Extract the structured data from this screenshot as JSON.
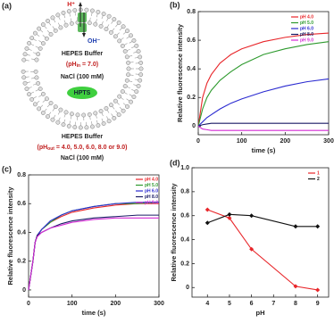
{
  "diagram": {
    "panel_label": "(a)",
    "proton": "H⁺",
    "hydroxide": "OH⁻",
    "inner_buffer": "HEPES Buffer",
    "inner_ph": {
      "prefix": "(pH",
      "sub": "in",
      "suffix": " = 7.0)"
    },
    "inner_salt": "NaCl (100 mM)",
    "dye": "HPTS",
    "outer_buffer": "HEPES Buffer",
    "outer_ph": {
      "prefix": "(pH",
      "sub": "out",
      "suffix": " = 4.0, 5.0, 6.0, 8.0 or 9.0)"
    },
    "outer_salt": "NaCl (100 mM)"
  },
  "chart_data": [
    {
      "type": "line",
      "panel_label": "(b)",
      "xlabel": "time (s)",
      "ylabel": "Relative fluorescence intensity",
      "x": [
        0,
        10,
        20,
        30,
        50,
        75,
        100,
        150,
        200,
        250,
        300
      ],
      "xlim": [
        0,
        300
      ],
      "xticks": [
        0,
        100,
        200,
        300
      ],
      "ylim": [
        -0.06,
        0.8
      ],
      "yticks": [
        0,
        0.2,
        0.4,
        0.6,
        0.8
      ],
      "legend": "upper right",
      "series": [
        {
          "name": "pH 4.0",
          "color": "#e8262a",
          "values": [
            0,
            0.2,
            0.3,
            0.36,
            0.44,
            0.5,
            0.54,
            0.59,
            0.62,
            0.64,
            0.65
          ]
        },
        {
          "name": "pH 5.0",
          "color": "#2e9a2e",
          "values": [
            0,
            0.12,
            0.2,
            0.25,
            0.32,
            0.38,
            0.43,
            0.5,
            0.54,
            0.57,
            0.59
          ]
        },
        {
          "name": "pH 6.0",
          "color": "#2a2ad0",
          "values": [
            0,
            0.03,
            0.06,
            0.08,
            0.12,
            0.16,
            0.19,
            0.24,
            0.28,
            0.31,
            0.33
          ]
        },
        {
          "name": "pH 8.0",
          "color": "#1a1a66",
          "values": [
            0,
            0.01,
            0.015,
            0.02,
            0.02,
            0.02,
            0.02,
            0.02,
            0.02,
            0.02,
            0.02
          ]
        },
        {
          "name": "pH 9.0",
          "color": "#d42ad4",
          "values": [
            0,
            -0.02,
            -0.025,
            -0.03,
            -0.03,
            -0.03,
            -0.03,
            -0.03,
            -0.03,
            -0.03,
            -0.03
          ]
        }
      ]
    },
    {
      "type": "line",
      "panel_label": "(c)",
      "xlabel": "time (s)",
      "ylabel": "Relative fluorescence intensity",
      "x": [
        0,
        10,
        15,
        20,
        30,
        50,
        75,
        100,
        150,
        200,
        250,
        300
      ],
      "xlim": [
        0,
        300
      ],
      "xticks": [
        0,
        100,
        200,
        300
      ],
      "ylim": [
        -0.05,
        0.8
      ],
      "yticks": [
        0,
        0.2,
        0.4,
        0.6,
        0.8
      ],
      "legend": "upper right",
      "series": [
        {
          "name": "pH 4.0",
          "color": "#e8262a",
          "values": [
            0,
            0.2,
            0.33,
            0.38,
            0.42,
            0.47,
            0.51,
            0.54,
            0.57,
            0.59,
            0.6,
            0.6
          ]
        },
        {
          "name": "pH 5.0",
          "color": "#2e9a2e",
          "values": [
            0,
            0.2,
            0.33,
            0.38,
            0.42,
            0.47,
            0.52,
            0.55,
            0.58,
            0.6,
            0.6,
            0.61
          ]
        },
        {
          "name": "pH 6.0",
          "color": "#2a2ad0",
          "values": [
            0,
            0.2,
            0.33,
            0.38,
            0.42,
            0.48,
            0.52,
            0.55,
            0.58,
            0.6,
            0.61,
            0.61
          ]
        },
        {
          "name": "pH 8.0",
          "color": "#1a1a66",
          "values": [
            0,
            0.2,
            0.33,
            0.38,
            0.4,
            0.43,
            0.46,
            0.48,
            0.5,
            0.51,
            0.52,
            0.52
          ]
        },
        {
          "name": "pH 9.0",
          "color": "#d42ad4",
          "values": [
            0,
            0.2,
            0.33,
            0.37,
            0.4,
            0.43,
            0.45,
            0.47,
            0.49,
            0.5,
            0.5,
            0.5
          ]
        }
      ]
    },
    {
      "type": "line",
      "panel_label": "(d)",
      "xlabel": "pH",
      "ylabel": "Relative fluorescence intensity",
      "markers": true,
      "x": [
        4,
        5,
        6,
        8,
        9
      ],
      "xlim": [
        3.3,
        9.5
      ],
      "xticks": [
        4,
        5,
        6,
        7,
        8,
        9
      ],
      "ylim": [
        -0.08,
        1.0
      ],
      "yticks": [
        0,
        0.2,
        0.4,
        0.6,
        0.8,
        {
          "value": 1,
          "label": "1.0"
        }
      ],
      "legend": "upper right",
      "series": [
        {
          "name": "1",
          "color": "#e8262a",
          "values": [
            0.65,
            0.58,
            0.32,
            0.01,
            -0.02
          ]
        },
        {
          "name": "2",
          "color": "#111111",
          "values": [
            0.54,
            0.61,
            0.6,
            0.51,
            0.51
          ]
        }
      ]
    }
  ]
}
